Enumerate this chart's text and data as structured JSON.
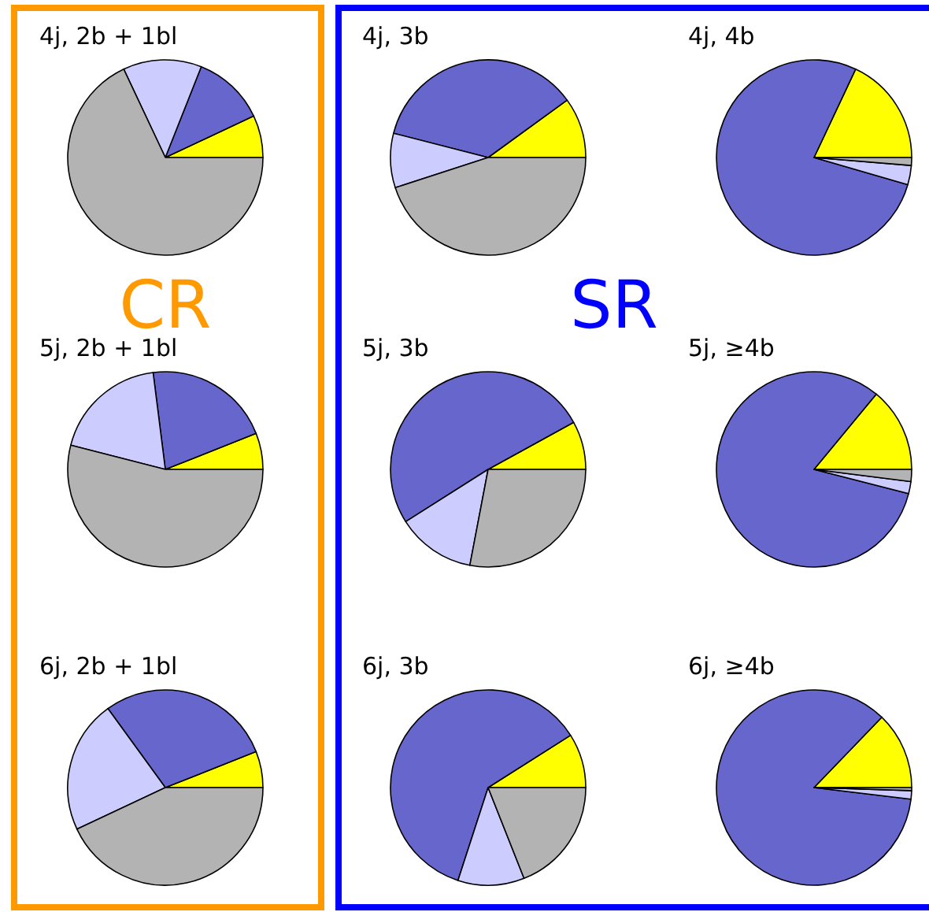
{
  "chart_data": [
    {
      "type": "other",
      "title": "CR"
    },
    {
      "type": "pie",
      "title": "4j, 2b + 1bl",
      "categories": [
        null,
        null,
        null,
        null
      ],
      "values": [
        7,
        12,
        13,
        68
      ],
      "colors": [
        "#ffff00",
        "#6666cc",
        "#ccccff",
        "#b3b3b3"
      ]
    },
    {
      "type": "pie",
      "title": "5j, 2b + 1bl",
      "categories": [
        null,
        null,
        null,
        null
      ],
      "values": [
        6,
        21,
        19,
        54
      ],
      "colors": [
        "#ffff00",
        "#6666cc",
        "#ccccff",
        "#b3b3b3"
      ]
    },
    {
      "type": "pie",
      "title": "6j, 2b + 1bl",
      "categories": [
        null,
        null,
        null,
        null
      ],
      "values": [
        6,
        29,
        22,
        43
      ],
      "colors": [
        "#ffff00",
        "#6666cc",
        "#ccccff",
        "#b3b3b3"
      ]
    },
    {
      "type": "other",
      "title": "SR"
    },
    {
      "type": "pie",
      "title": "4j, 3b",
      "categories": [
        null,
        null,
        null,
        null
      ],
      "values": [
        10,
        36,
        9,
        45
      ],
      "colors": [
        "#ffff00",
        "#6666cc",
        "#ccccff",
        "#b3b3b3"
      ]
    },
    {
      "type": "pie",
      "title": "4j, 4b",
      "categories": [
        null,
        null,
        null,
        null
      ],
      "values": [
        18,
        77.5,
        3.2,
        1.3
      ],
      "colors": [
        "#ffff00",
        "#6666cc",
        "#ccccff",
        "#b3b3b3"
      ]
    },
    {
      "type": "pie",
      "title": "5j, 3b",
      "categories": [
        null,
        null,
        null,
        null
      ],
      "values": [
        8,
        51,
        13,
        28
      ],
      "colors": [
        "#ffff00",
        "#6666cc",
        "#ccccff",
        "#b3b3b3"
      ]
    },
    {
      "type": "pie",
      "title": "5j, ≥4b",
      "categories": [
        null,
        null,
        null,
        null
      ],
      "values": [
        14,
        82,
        2,
        2
      ],
      "colors": [
        "#ffff00",
        "#6666cc",
        "#ccccff",
        "#b3b3b3"
      ]
    },
    {
      "type": "pie",
      "title": "6j, 3b",
      "categories": [
        null,
        null,
        null,
        null
      ],
      "values": [
        9,
        61,
        11,
        19
      ],
      "colors": [
        "#ffff00",
        "#6666cc",
        "#ccccff",
        "#b3b3b3"
      ]
    },
    {
      "type": "pie",
      "title": "6j, ≥4b",
      "categories": [
        null,
        null,
        null,
        null
      ],
      "values": [
        12.8,
        85.3,
        1.4,
        0.5
      ],
      "colors": [
        "#ffff00",
        "#6666cc",
        "#ccccff",
        "#b3b3b3"
      ]
    }
  ]
}
